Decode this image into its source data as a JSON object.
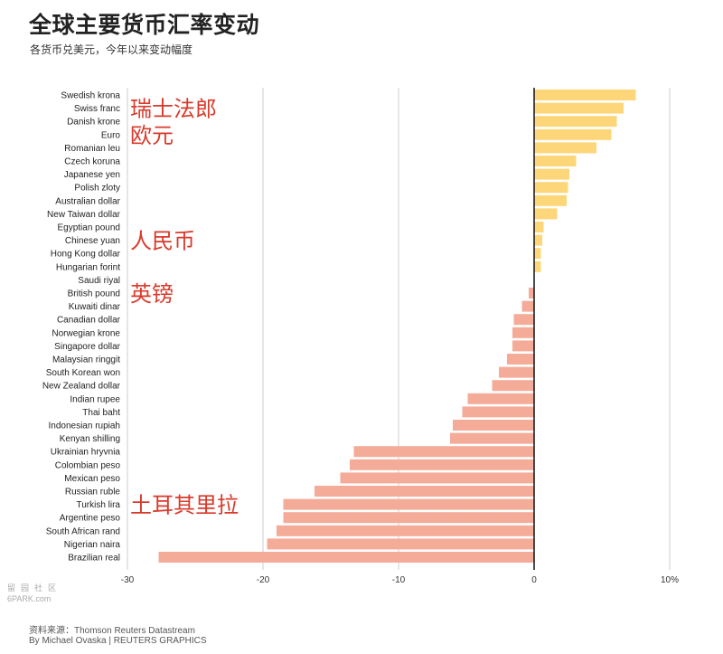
{
  "title": "全球主要货币汇率变动",
  "subtitle": "各货币兑美元，今年以来变动幅度",
  "source": "资料来源：Thomson Reuters Datastream",
  "credit": "By Michael Ovaska | REUTERS GRAPHICS",
  "watermark": {
    "main": "留园社区",
    "sub": "6PARK.com"
  },
  "colors": {
    "positive": "#fdd67a",
    "negative": "#f4ac99",
    "annotation": "#d93a2b",
    "zero_line": "#111111",
    "grid": "#cccccc"
  },
  "annotations": [
    {
      "text": "瑞士法郎",
      "category": "Swiss franc"
    },
    {
      "text": "欧元",
      "category": "Euro"
    },
    {
      "text": "人民币",
      "category": "Chinese yuan"
    },
    {
      "text": "英镑",
      "category": "British pound"
    },
    {
      "text": "土耳其里拉",
      "category": "Turkish lira"
    }
  ],
  "chart_data": {
    "type": "bar",
    "orientation": "horizontal",
    "categories": [
      "Swedish krona",
      "Swiss franc",
      "Danish krone",
      "Euro",
      "Romanian leu",
      "Czech koruna",
      "Japanese yen",
      "Polish zloty",
      "Australian dollar",
      "New Taiwan dollar",
      "Egyptian pound",
      "Chinese yuan",
      "Hong Kong dollar",
      "Hungarian forint",
      "Saudi riyal",
      "British pound",
      "Kuwaiti dinar",
      "Canadian dollar",
      "Norwegian krone",
      "Singapore dollar",
      "Malaysian ringgit",
      "South Korean won",
      "New Zealand dollar",
      "Indian rupee",
      "Thai baht",
      "Indonesian rupiah",
      "Kenyan shilling",
      "Ukrainian hryvnia",
      "Colombian peso",
      "Mexican peso",
      "Russian ruble",
      "Turkish lira",
      "Argentine peso",
      "South African rand",
      "Nigerian naira",
      "Brazilian real"
    ],
    "values": [
      7.5,
      6.6,
      6.1,
      5.7,
      4.6,
      3.1,
      2.6,
      2.5,
      2.4,
      1.7,
      0.7,
      0.6,
      0.5,
      0.5,
      0.0,
      -0.4,
      -0.9,
      -1.5,
      -1.6,
      -1.6,
      -2.0,
      -2.6,
      -3.1,
      -4.9,
      -5.3,
      -6.0,
      -6.2,
      -13.3,
      -13.6,
      -14.3,
      -16.2,
      -18.5,
      -18.5,
      -19.0,
      -19.7,
      -27.7
    ],
    "xlim": [
      -30,
      10
    ],
    "xticks": [
      "-30",
      "-20",
      "-10",
      "0",
      "10%"
    ],
    "xtick_values": [
      -30,
      -20,
      -10,
      0,
      10
    ],
    "grid": true
  }
}
